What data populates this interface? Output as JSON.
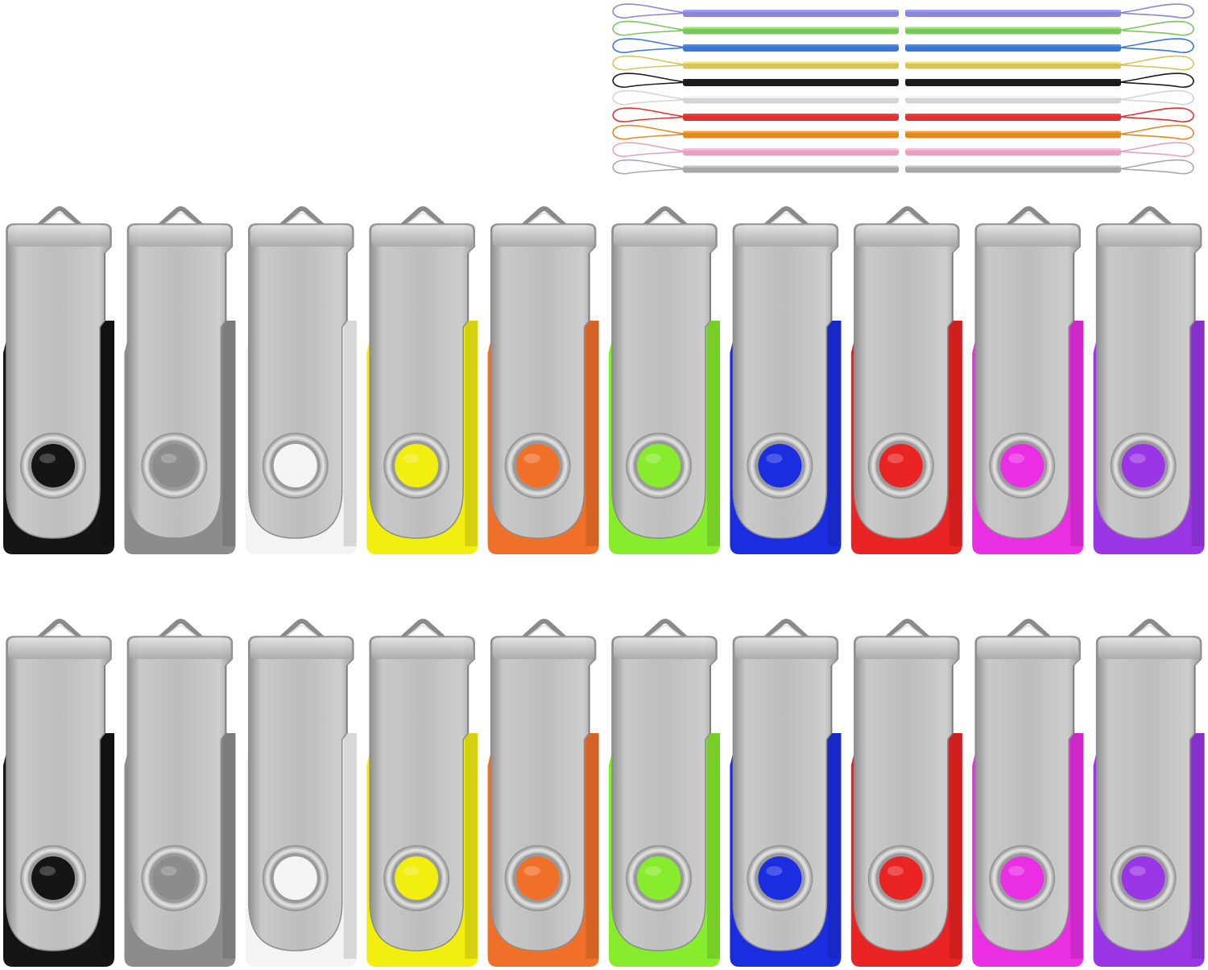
{
  "product": {
    "drive_count": 20,
    "lanyard_count": 10,
    "drive_colors": [
      {
        "name": "black",
        "hex": "#151515"
      },
      {
        "name": "gray",
        "hex": "#8c8c8c"
      },
      {
        "name": "white",
        "hex": "#f4f4f4"
      },
      {
        "name": "yellow",
        "hex": "#f2ee10"
      },
      {
        "name": "orange",
        "hex": "#f0702a"
      },
      {
        "name": "green",
        "hex": "#86ec2c"
      },
      {
        "name": "blue",
        "hex": "#1a2ee0"
      },
      {
        "name": "red",
        "hex": "#ea2424"
      },
      {
        "name": "magenta",
        "hex": "#ea2ee4"
      },
      {
        "name": "purple",
        "hex": "#9a36e6"
      }
    ],
    "lanyard_colors": [
      {
        "name": "purple",
        "hex": "#8a86d6"
      },
      {
        "name": "green",
        "hex": "#7cc45c"
      },
      {
        "name": "blue",
        "hex": "#3a78d8"
      },
      {
        "name": "yellow",
        "hex": "#d8c25a"
      },
      {
        "name": "black",
        "hex": "#1c1c1c"
      },
      {
        "name": "white",
        "hex": "#d4d4d4"
      },
      {
        "name": "red",
        "hex": "#e03232"
      },
      {
        "name": "orange",
        "hex": "#e08a22"
      },
      {
        "name": "pink",
        "hex": "#e8a2c0"
      },
      {
        "name": "gray",
        "hex": "#a8a8a8"
      }
    ],
    "swivel_metal": "#b9b9b9"
  }
}
